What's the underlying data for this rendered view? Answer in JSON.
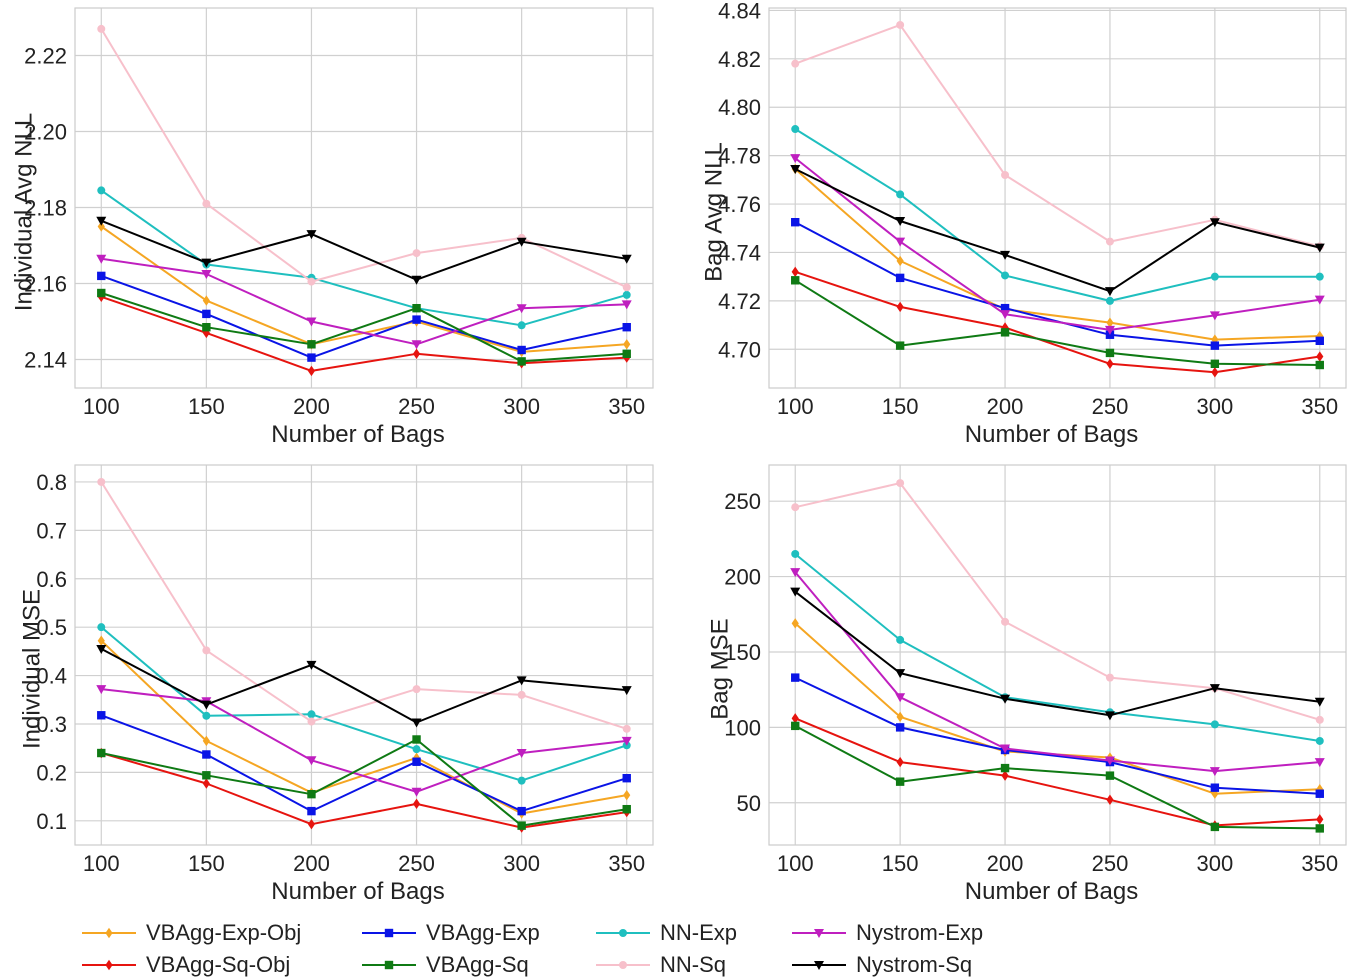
{
  "series_styles": [
    {
      "name": "VBAgg-Exp-Obj",
      "color": "#f5a623",
      "marker": "diamond"
    },
    {
      "name": "VBAgg-Exp",
      "color": "#0a14e6",
      "marker": "square"
    },
    {
      "name": "NN-Exp",
      "color": "#1fbfbf",
      "marker": "circle"
    },
    {
      "name": "Nystrom-Exp",
      "color": "#bf1fbf",
      "marker": "triangle-down"
    },
    {
      "name": "VBAgg-Sq-Obj",
      "color": "#e6140f",
      "marker": "diamond"
    },
    {
      "name": "VBAgg-Sq",
      "color": "#0f7a14",
      "marker": "square"
    },
    {
      "name": "NN-Sq",
      "color": "#f7c0cb",
      "marker": "circle"
    },
    {
      "name": "Nystrom-Sq",
      "color": "#000000",
      "marker": "triangle-down"
    }
  ],
  "legend": {
    "entries": [
      {
        "label": "VBAgg-Exp-Obj",
        "series": 0
      },
      {
        "label": "VBAgg-Exp",
        "series": 1
      },
      {
        "label": "NN-Exp",
        "series": 2
      },
      {
        "label": "Nystrom-Exp",
        "series": 3
      },
      {
        "label": "VBAgg-Sq-Obj",
        "series": 4
      },
      {
        "label": "VBAgg-Sq",
        "series": 5
      },
      {
        "label": "NN-Sq",
        "series": 6
      },
      {
        "label": "Nystrom-Sq",
        "series": 7
      }
    ]
  },
  "chart_data": [
    {
      "type": "line",
      "title": "",
      "xlabel": "Number of Bags",
      "ylabel": "Individual Avg NLL",
      "x": [
        100,
        150,
        200,
        250,
        300,
        350
      ],
      "xlim": [
        87.5,
        362.5
      ],
      "ylim": [
        2.1325,
        2.2325
      ],
      "yticks": [
        "2.14",
        "2.16",
        "2.18",
        "2.20",
        "2.22"
      ],
      "xticks": [
        "100",
        "150",
        "200",
        "250",
        "300",
        "350"
      ],
      "series": [
        {
          "name": "VBAgg-Exp-Obj",
          "values": [
            2.175,
            2.1555,
            2.144,
            2.15,
            2.142,
            2.144
          ]
        },
        {
          "name": "VBAgg-Exp",
          "values": [
            2.162,
            2.152,
            2.1405,
            2.1505,
            2.1425,
            2.1485
          ]
        },
        {
          "name": "NN-Exp",
          "values": [
            2.1845,
            2.165,
            2.1615,
            2.1535,
            2.149,
            2.157
          ]
        },
        {
          "name": "Nystrom-Exp",
          "values": [
            2.1665,
            2.1625,
            2.15,
            2.144,
            2.1535,
            2.1545
          ]
        },
        {
          "name": "VBAgg-Sq-Obj",
          "values": [
            2.1565,
            2.147,
            2.137,
            2.1415,
            2.139,
            2.1405
          ]
        },
        {
          "name": "VBAgg-Sq",
          "values": [
            2.1575,
            2.1485,
            2.144,
            2.1535,
            2.1395,
            2.1415
          ]
        },
        {
          "name": "NN-Sq",
          "values": [
            2.227,
            2.181,
            2.1605,
            2.168,
            2.172,
            2.159
          ]
        },
        {
          "name": "Nystrom-Sq",
          "values": [
            2.1765,
            2.1655,
            2.173,
            2.161,
            2.171,
            2.1665
          ]
        }
      ]
    },
    {
      "type": "line",
      "title": "",
      "xlabel": "Number of Bags",
      "ylabel": "Bag Avg NLL",
      "x": [
        100,
        150,
        200,
        250,
        300,
        350
      ],
      "xlim": [
        87.5,
        362.5
      ],
      "ylim": [
        4.684,
        4.841
      ],
      "yticks": [
        "4.70",
        "4.72",
        "4.74",
        "4.76",
        "4.78",
        "4.80",
        "4.82",
        "4.84"
      ],
      "xticks": [
        "100",
        "150",
        "200",
        "250",
        "300",
        "350"
      ],
      "series": [
        {
          "name": "VBAgg-Exp-Obj",
          "values": [
            4.7745,
            4.7365,
            4.7165,
            4.711,
            4.704,
            4.7055
          ]
        },
        {
          "name": "VBAgg-Exp",
          "values": [
            4.7525,
            4.7295,
            4.717,
            4.706,
            4.7015,
            4.7035
          ]
        },
        {
          "name": "NN-Exp",
          "values": [
            4.791,
            4.764,
            4.7305,
            4.72,
            4.73,
            4.73
          ]
        },
        {
          "name": "Nystrom-Exp",
          "values": [
            4.779,
            4.7445,
            4.7145,
            4.708,
            4.714,
            4.7205
          ]
        },
        {
          "name": "VBAgg-Sq-Obj",
          "values": [
            4.732,
            4.7175,
            4.709,
            4.694,
            4.6905,
            4.697
          ]
        },
        {
          "name": "VBAgg-Sq",
          "values": [
            4.7285,
            4.7015,
            4.707,
            4.6985,
            4.694,
            4.6935
          ]
        },
        {
          "name": "NN-Sq",
          "values": [
            4.818,
            4.834,
            4.772,
            4.7445,
            4.7535,
            4.7425
          ]
        },
        {
          "name": "Nystrom-Sq",
          "values": [
            4.7745,
            4.753,
            4.739,
            4.724,
            4.7525,
            4.742
          ]
        }
      ]
    },
    {
      "type": "line",
      "title": "",
      "xlabel": "Number of Bags",
      "ylabel": "Individual MSE",
      "x": [
        100,
        150,
        200,
        250,
        300,
        350
      ],
      "xlim": [
        87.5,
        362.5
      ],
      "ylim": [
        0.05,
        0.835
      ],
      "yticks": [
        "0.1",
        "0.2",
        "0.3",
        "0.4",
        "0.5",
        "0.6",
        "0.7",
        "0.8"
      ],
      "xticks": [
        "100",
        "150",
        "200",
        "250",
        "300",
        "350"
      ],
      "series": [
        {
          "name": "VBAgg-Exp-Obj",
          "values": [
            0.472,
            0.265,
            0.158,
            0.23,
            0.115,
            0.153
          ]
        },
        {
          "name": "VBAgg-Exp",
          "values": [
            0.318,
            0.237,
            0.12,
            0.222,
            0.12,
            0.188
          ]
        },
        {
          "name": "NN-Exp",
          "values": [
            0.5,
            0.317,
            0.32,
            0.248,
            0.183,
            0.256
          ]
        },
        {
          "name": "Nystrom-Exp",
          "values": [
            0.372,
            0.347,
            0.225,
            0.16,
            0.24,
            0.265
          ]
        },
        {
          "name": "VBAgg-Sq-Obj",
          "values": [
            0.24,
            0.177,
            0.093,
            0.135,
            0.086,
            0.118
          ]
        },
        {
          "name": "VBAgg-Sq",
          "values": [
            0.24,
            0.194,
            0.155,
            0.268,
            0.09,
            0.124
          ]
        },
        {
          "name": "NN-Sq",
          "values": [
            0.8,
            0.452,
            0.305,
            0.372,
            0.36,
            0.29
          ]
        },
        {
          "name": "Nystrom-Sq",
          "values": [
            0.455,
            0.34,
            0.422,
            0.303,
            0.39,
            0.37
          ]
        }
      ]
    },
    {
      "type": "line",
      "title": "",
      "xlabel": "Number of Bags",
      "ylabel": "Bag MSE",
      "x": [
        100,
        150,
        200,
        250,
        300,
        350
      ],
      "xlim": [
        87.5,
        362.5
      ],
      "ylim": [
        22,
        274
      ],
      "yticks": [
        "50",
        "100",
        "150",
        "200",
        "250"
      ],
      "xticks": [
        "100",
        "150",
        "200",
        "250",
        "300",
        "350"
      ],
      "series": [
        {
          "name": "VBAgg-Exp-Obj",
          "values": [
            169,
            107,
            84,
            80,
            56,
            59
          ]
        },
        {
          "name": "VBAgg-Exp",
          "values": [
            133,
            100,
            85,
            77,
            60,
            56
          ]
        },
        {
          "name": "NN-Exp",
          "values": [
            215,
            158,
            120,
            110,
            102,
            91
          ]
        },
        {
          "name": "Nystrom-Exp",
          "values": [
            203,
            120,
            86,
            78,
            71,
            77
          ]
        },
        {
          "name": "VBAgg-Sq-Obj",
          "values": [
            106,
            77,
            68,
            52,
            35,
            39
          ]
        },
        {
          "name": "VBAgg-Sq",
          "values": [
            101,
            64,
            73,
            68,
            34,
            33
          ]
        },
        {
          "name": "NN-Sq",
          "values": [
            246,
            262,
            170,
            133,
            126,
            105
          ]
        },
        {
          "name": "Nystrom-Sq",
          "values": [
            190,
            136,
            119,
            108,
            126,
            117
          ]
        }
      ]
    }
  ]
}
